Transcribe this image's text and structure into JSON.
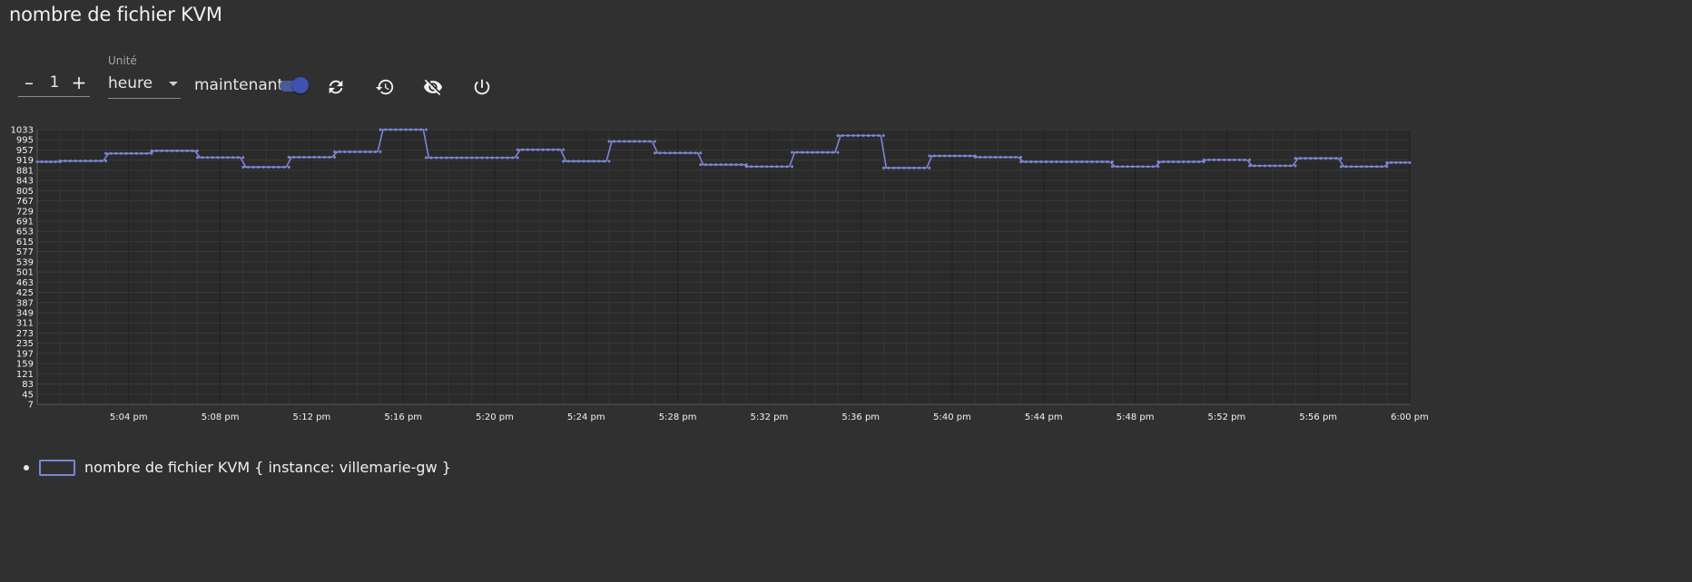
{
  "title": "nombre de fichier KVM",
  "toolbar": {
    "stepper_value": "1",
    "minus_label": "–",
    "plus_label": "+",
    "unit_label": "Unité",
    "unit_value": "heure",
    "now_label": "maintenant",
    "now_toggle_on": true,
    "icons": [
      "refresh-icon",
      "history-icon",
      "eye-off-icon",
      "power-icon"
    ]
  },
  "colors": {
    "background": "#303030",
    "plot_background": "#2a2a2a",
    "series": "#7b86d6",
    "toggle": "#3f51b5"
  },
  "chart_data": {
    "type": "line",
    "title": "",
    "xlabel": "",
    "ylabel": "",
    "y_ticks": [
      7,
      45,
      83,
      121,
      159,
      197,
      235,
      273,
      311,
      349,
      387,
      425,
      463,
      501,
      539,
      577,
      615,
      653,
      691,
      729,
      767,
      805,
      843,
      881,
      919,
      957,
      995,
      1033
    ],
    "ylim": [
      7,
      1033
    ],
    "x_ticks": [
      "5:04 pm",
      "5:08 pm",
      "5:12 pm",
      "5:16 pm",
      "5:20 pm",
      "5:24 pm",
      "5:28 pm",
      "5:32 pm",
      "5:36 pm",
      "5:40 pm",
      "5:44 pm",
      "5:48 pm",
      "5:52 pm",
      "5:56 pm",
      "6:00 pm"
    ],
    "x_range_minutes": [
      "5:00 pm",
      "6:00 pm"
    ],
    "grid": true,
    "step": true,
    "series": [
      {
        "name": "nombre de fichier KVM { instance: villemarie-gw }",
        "points_per_segment": 9,
        "segments": [
          {
            "start": "5:00 pm",
            "end": "5:01 pm",
            "value": 913
          },
          {
            "start": "5:01 pm",
            "end": "5:03 pm",
            "value": 916
          },
          {
            "start": "5:03 pm",
            "end": "5:05 pm",
            "value": 944
          },
          {
            "start": "5:05 pm",
            "end": "5:07 pm",
            "value": 954
          },
          {
            "start": "5:07 pm",
            "end": "5:09 pm",
            "value": 929
          },
          {
            "start": "5:09 pm",
            "end": "5:11 pm",
            "value": 893
          },
          {
            "start": "5:11 pm",
            "end": "5:13 pm",
            "value": 930
          },
          {
            "start": "5:13 pm",
            "end": "5:15 pm",
            "value": 950
          },
          {
            "start": "5:15 pm",
            "end": "5:17 pm",
            "value": 1033
          },
          {
            "start": "5:17 pm",
            "end": "5:21 pm",
            "value": 928
          },
          {
            "start": "5:21 pm",
            "end": "5:23 pm",
            "value": 958
          },
          {
            "start": "5:23 pm",
            "end": "5:25 pm",
            "value": 915
          },
          {
            "start": "5:25 pm",
            "end": "5:27 pm",
            "value": 989
          },
          {
            "start": "5:27 pm",
            "end": "5:29 pm",
            "value": 946
          },
          {
            "start": "5:29 pm",
            "end": "5:31 pm",
            "value": 902
          },
          {
            "start": "5:31 pm",
            "end": "5:33 pm",
            "value": 895
          },
          {
            "start": "5:33 pm",
            "end": "5:35 pm",
            "value": 948
          },
          {
            "start": "5:35 pm",
            "end": "5:37 pm",
            "value": 1011
          },
          {
            "start": "5:37 pm",
            "end": "5:39 pm",
            "value": 890
          },
          {
            "start": "5:39 pm",
            "end": "5:41 pm",
            "value": 935
          },
          {
            "start": "5:41 pm",
            "end": "5:43 pm",
            "value": 930
          },
          {
            "start": "5:43 pm",
            "end": "5:47 pm",
            "value": 913
          },
          {
            "start": "5:47 pm",
            "end": "5:49 pm",
            "value": 895
          },
          {
            "start": "5:49 pm",
            "end": "5:51 pm",
            "value": 913
          },
          {
            "start": "5:51 pm",
            "end": "5:53 pm",
            "value": 920
          },
          {
            "start": "5:53 pm",
            "end": "5:55 pm",
            "value": 898
          },
          {
            "start": "5:55 pm",
            "end": "5:57 pm",
            "value": 926
          },
          {
            "start": "5:57 pm",
            "end": "5:59 pm",
            "value": 895
          },
          {
            "start": "5:59 pm",
            "end": "6:00 pm",
            "value": 910
          }
        ]
      }
    ],
    "legend": "bottom-left"
  }
}
